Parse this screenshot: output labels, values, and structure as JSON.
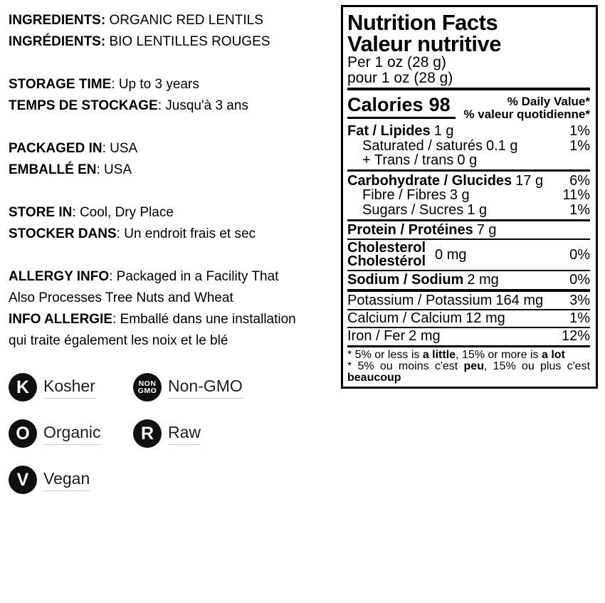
{
  "colors": {
    "text": "#000000",
    "badge_circle": "#0f0f0f",
    "label_underline": "#cccccc"
  },
  "info": {
    "groups": [
      {
        "lines": [
          {
            "label": "INGREDIENTS:",
            "rest": " ORGANIC RED LENTILS"
          },
          {
            "label": "INGRÉDIENTS:",
            "rest": " BIO LENTILLES ROUGES"
          }
        ]
      },
      {
        "lines": [
          {
            "label": "STORAGE TIME",
            "rest": ": Up to 3 years"
          },
          {
            "label": "TEMPS DE STOCKAGE",
            "rest": ": Jusqu'à 3 ans"
          }
        ]
      },
      {
        "lines": [
          {
            "label": "PACKAGED IN",
            "rest": ": USA"
          },
          {
            "label": "EMBALLÉ EN",
            "rest": ": USA"
          }
        ]
      },
      {
        "lines": [
          {
            "label": "STORE IN",
            "rest": ": Cool, Dry Place"
          },
          {
            "label": "STOCKER DANS",
            "rest": ": Un endroit frais et sec"
          }
        ]
      },
      {
        "lines": [
          {
            "label": "ALLERGY INFO",
            "rest": ": Packaged in a Facility That"
          },
          {
            "label": "",
            "rest": "Also Processes Tree Nuts and Wheat"
          },
          {
            "label": "INFO ALLERGIE",
            "rest": ": Emballé dans une installation"
          },
          {
            "label": "",
            "rest": "qui traite également les noix et le blé"
          }
        ]
      }
    ]
  },
  "badges": [
    {
      "icon": "K",
      "label": "Kosher"
    },
    {
      "icon": "NON\nGMO",
      "label": "Non-GMO"
    },
    {
      "icon": "O",
      "label": "Organic"
    },
    {
      "icon": "R",
      "label": "Raw"
    },
    {
      "icon": "V",
      "label": "Vegan"
    }
  ],
  "nutrition": {
    "title_en": "Nutrition Facts",
    "title_fr": "Valeur nutritive",
    "serving_en": "Per 1 oz (28 g)",
    "serving_fr": "pour 1 oz (28 g)",
    "calories_label": "Calories",
    "calories_value": "98",
    "dv_en": "% Daily Value*",
    "dv_fr": "% valeur quotidienne*",
    "rows": [
      {
        "name": "Fat / Lipides",
        "amount": "1 g",
        "dv": "1%"
      },
      {
        "name": "Saturated / saturés",
        "amount": "0.1 g",
        "dv": "1%"
      },
      {
        "name": "+ Trans / trans",
        "amount": "0 g",
        "dv": ""
      },
      {
        "name": "Carbohydrate / Glucides",
        "amount": "17 g",
        "dv": "6%"
      },
      {
        "name": "Fibre / Fibres",
        "amount": "3 g",
        "dv": "11%"
      },
      {
        "name": "Sugars / Sucres",
        "amount": "1 g",
        "dv": "1%"
      },
      {
        "name": "Protein / Protéines",
        "amount": "7 g",
        "dv": ""
      },
      {
        "name_line1": "Cholesterol",
        "name_line2": "Cholestérol",
        "amount": "0 mg",
        "dv": "0%"
      },
      {
        "name": "Sodium / Sodium",
        "amount": "2 mg",
        "dv": "0%"
      },
      {
        "name": "Potassium / Potassium",
        "amount": "164 mg",
        "dv": "3%"
      },
      {
        "name": "Calcium / Calcium",
        "amount": "12 mg",
        "dv": "1%"
      },
      {
        "name": "Iron / Fer",
        "amount": "2 mg",
        "dv": "12%"
      }
    ],
    "footnote_en": {
      "pre": "* 5% or less is ",
      "bold1": "a little",
      "mid": ", 15% or more is ",
      "bold2": "a lot"
    },
    "footnote_fr": {
      "pre": "* 5% ou moins c'est ",
      "bold1": "peu",
      "mid": ", 15% ou plus c'est ",
      "bold2": "beaucoup"
    }
  }
}
